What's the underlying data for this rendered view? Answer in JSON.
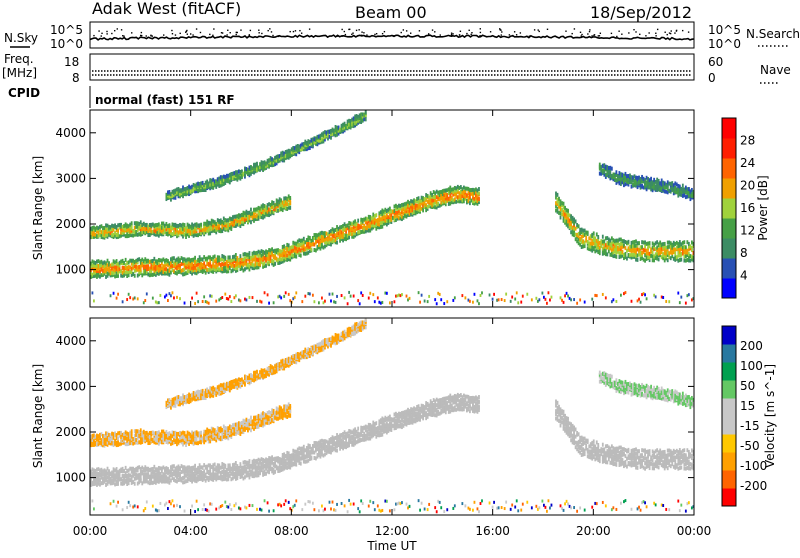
{
  "header": {
    "title": "Adak West (fitACF)",
    "beam": "Beam 00",
    "date": "18/Sep/2012"
  },
  "nsky_panel": {
    "left_label": "N.Sky",
    "right_label": "N.Search",
    "left_ticks": [
      "10^5",
      "10^0"
    ],
    "right_ticks": [
      "10^5",
      "10^0"
    ]
  },
  "freq_panel": {
    "left_label_1": "Freq.",
    "left_label_2": "[MHz]",
    "left_ticks": [
      "18",
      "8"
    ],
    "right_label": "Nave",
    "right_ticks": [
      "60",
      "0"
    ]
  },
  "cpid_panel": {
    "label": "CPID",
    "text": "normal (fast) 151 RF"
  },
  "colors": {
    "power_scale": [
      "#0000ff",
      "#2850b4",
      "#3c8c64",
      "#46a046",
      "#a0d23c",
      "#f0a000",
      "#ff6400",
      "#ff1e00",
      "#ff0000"
    ],
    "velocity_scale": [
      "#ff0000",
      "#ff6400",
      "#ffa000",
      "#ffc800",
      "#c8c8c8",
      "#c8c8c8",
      "#64c864",
      "#00a050",
      "#2878a0",
      "#0000c8"
    ],
    "ground_scatter": "#bbbbbb"
  },
  "chart_data": [
    {
      "type": "heatmap",
      "panel": "power",
      "ylabel": "Slant Range [km]",
      "y_ticks": [
        "1000",
        "2000",
        "3000",
        "4000"
      ],
      "ylim": [
        180,
        4500
      ],
      "x_ticks": [
        "00:00",
        "04:00",
        "08:00",
        "12:00",
        "16:00",
        "20:00",
        "00:00"
      ],
      "xlim_hours": [
        0,
        24
      ],
      "colorbar_label": "Power [dB]",
      "colorbar_ticks": [
        "28",
        "24",
        "20",
        "16",
        "12",
        "8",
        "4"
      ],
      "colorbar_range": [
        0,
        32
      ],
      "bands": [
        {
          "name": "near",
          "points": [
            [
              0,
              1000
            ],
            [
              2,
              1050
            ],
            [
              4,
              1080
            ],
            [
              6,
              1150
            ],
            [
              7.5,
              1300
            ],
            [
              9,
              1600
            ],
            [
              10.5,
              1900
            ],
            [
              12,
              2200
            ],
            [
              13.5,
              2500
            ],
            [
              14.5,
              2650
            ],
            [
              15.5,
              2600
            ]
          ],
          "width": 300,
          "power": 26
        },
        {
          "name": "second",
          "points": [
            [
              0,
              1800
            ],
            [
              2,
              1900
            ],
            [
              4,
              1850
            ],
            [
              5.5,
              2000
            ],
            [
              7,
              2300
            ],
            [
              8,
              2500
            ]
          ],
          "width": 220,
          "power": 24
        },
        {
          "name": "upper",
          "points": [
            [
              3,
              2600
            ],
            [
              5,
              2900
            ],
            [
              7,
              3300
            ],
            [
              8.5,
              3700
            ],
            [
              10,
              4100
            ],
            [
              11,
              4400
            ]
          ],
          "width": 140,
          "power": 18
        },
        {
          "name": "late",
          "points": [
            [
              18.5,
              2500
            ],
            [
              19,
              2100
            ],
            [
              19.5,
              1700
            ],
            [
              20.5,
              1500
            ],
            [
              22,
              1400
            ],
            [
              24,
              1400
            ]
          ],
          "width": 350,
          "power": 24
        },
        {
          "name": "late_upper",
          "points": [
            [
              20.2,
              3250
            ],
            [
              21,
              3000
            ],
            [
              22,
              2900
            ],
            [
              23,
              2800
            ],
            [
              24,
              2650
            ]
          ],
          "width": 200,
          "power": 14
        }
      ]
    },
    {
      "type": "heatmap",
      "panel": "velocity",
      "ylabel": "Slant Range [km]",
      "y_ticks": [
        "1000",
        "2000",
        "3000",
        "4000"
      ],
      "ylim": [
        180,
        4500
      ],
      "x_ticks": [
        "00:00",
        "04:00",
        "08:00",
        "12:00",
        "16:00",
        "20:00",
        "00:00"
      ],
      "xlim_hours": [
        0,
        24
      ],
      "xlabel": "Time UT",
      "colorbar_label": "Velocity [m s^-1]",
      "colorbar_ticks": [
        "200",
        "100",
        "50",
        "15",
        "-15",
        "-50",
        "-100",
        "-200"
      ],
      "colorbar_range": [
        -250,
        250
      ]
    }
  ]
}
